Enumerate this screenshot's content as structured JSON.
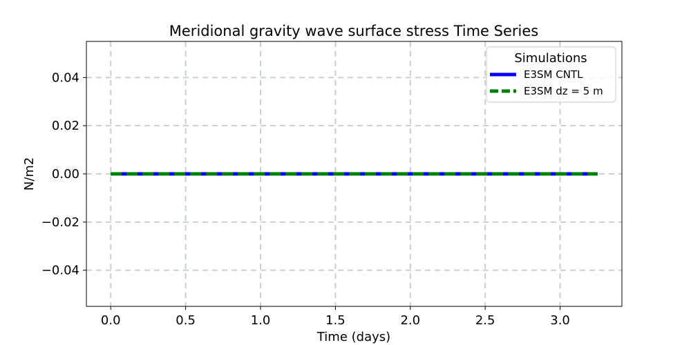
{
  "chart_data": {
    "type": "line",
    "title": "Meridional gravity wave surface stress Time Series",
    "xlabel": "Time (days)",
    "ylabel": "N/m2",
    "xlim": [
      -0.1625,
      3.4125
    ],
    "ylim": [
      -0.055,
      0.055
    ],
    "xticks": [
      0.0,
      0.5,
      1.0,
      1.5,
      2.0,
      2.5,
      3.0
    ],
    "xtick_labels": [
      "0.0",
      "0.5",
      "1.0",
      "1.5",
      "2.0",
      "2.5",
      "3.0"
    ],
    "yticks": [
      0.04,
      0.02,
      0.0,
      -0.02,
      -0.04
    ],
    "ytick_labels": [
      "0.04",
      "0.02",
      "0.00",
      "−0.02",
      "−0.04"
    ],
    "grid": true,
    "legend": {
      "title": "Simulations",
      "placement": "upper right"
    },
    "series": [
      {
        "name": "E3SM CNTL",
        "color": "#0000ff",
        "line_style": "solid",
        "x": [
          0.0,
          3.25
        ],
        "y": [
          0.0,
          0.0
        ]
      },
      {
        "name": "E3SM dz = 5 m",
        "color": "#008000",
        "line_style": "dashed",
        "x": [
          0.0,
          3.25
        ],
        "y": [
          0.0,
          0.0
        ]
      }
    ]
  }
}
